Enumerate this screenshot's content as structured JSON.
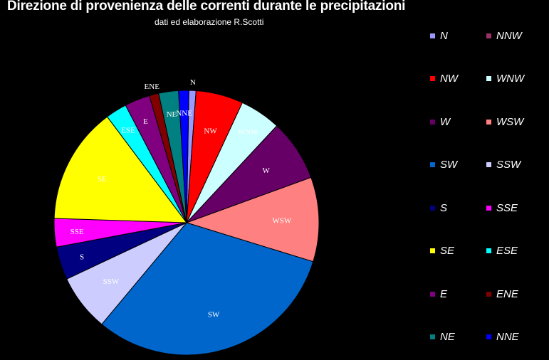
{
  "chart_data": {
    "type": "pie",
    "title": "Direzione di provenienza delle correnti durante le precipitazioni",
    "subtitle": "dati ed elaborazione R.Scotti",
    "slices": [
      {
        "label": "N",
        "value": 0.9,
        "color": "#9999FF"
      },
      {
        "label": "NW",
        "value": 6.0,
        "color": "#FF0000"
      },
      {
        "label": "WNW",
        "value": 5.2,
        "color": "#CCFFFF"
      },
      {
        "label": "W",
        "value": 7.8,
        "color": "#660066"
      },
      {
        "label": "WSW",
        "value": 10.7,
        "color": "#FF8080"
      },
      {
        "label": "SW",
        "value": 32.5,
        "color": "#0066CC"
      },
      {
        "label": "SSW",
        "value": 7.2,
        "color": "#CCCCFF"
      },
      {
        "label": "S",
        "value": 4.2,
        "color": "#000080"
      },
      {
        "label": "SSE",
        "value": 3.6,
        "color": "#FF00FF"
      },
      {
        "label": "SE",
        "value": 14.8,
        "color": "#FFFF00"
      },
      {
        "label": "ESE",
        "value": 2.7,
        "color": "#00FFFF"
      },
      {
        "label": "E",
        "value": 3.2,
        "color": "#800080"
      },
      {
        "label": "ENE",
        "value": 1.2,
        "color": "#800000"
      },
      {
        "label": "NE",
        "value": 2.5,
        "color": "#008080"
      },
      {
        "label": "NNE",
        "value": 1.3,
        "color": "#0000FF"
      },
      {
        "label": "NNW",
        "value": 0,
        "color": "#993366"
      }
    ],
    "legend": {
      "position": "right",
      "entries": [
        {
          "label": "N",
          "color": "#9999FF"
        },
        {
          "label": "NNW",
          "color": "#993366"
        },
        {
          "label": "NW",
          "color": "#FF0000"
        },
        {
          "label": "WNW",
          "color": "#CCFFFF"
        },
        {
          "label": "W",
          "color": "#660066"
        },
        {
          "label": "WSW",
          "color": "#FF8080"
        },
        {
          "label": "SW",
          "color": "#0066CC"
        },
        {
          "label": "SSW",
          "color": "#CCCCFF"
        },
        {
          "label": "S",
          "color": "#000080"
        },
        {
          "label": "SSE",
          "color": "#FF00FF"
        },
        {
          "label": "SE",
          "color": "#FFFF00"
        },
        {
          "label": "ESE",
          "color": "#00FFFF"
        },
        {
          "label": "E",
          "color": "#800080"
        },
        {
          "label": "ENE",
          "color": "#800000"
        },
        {
          "label": "NE",
          "color": "#008080"
        },
        {
          "label": "NNE",
          "color": "#0000FF"
        }
      ]
    }
  }
}
